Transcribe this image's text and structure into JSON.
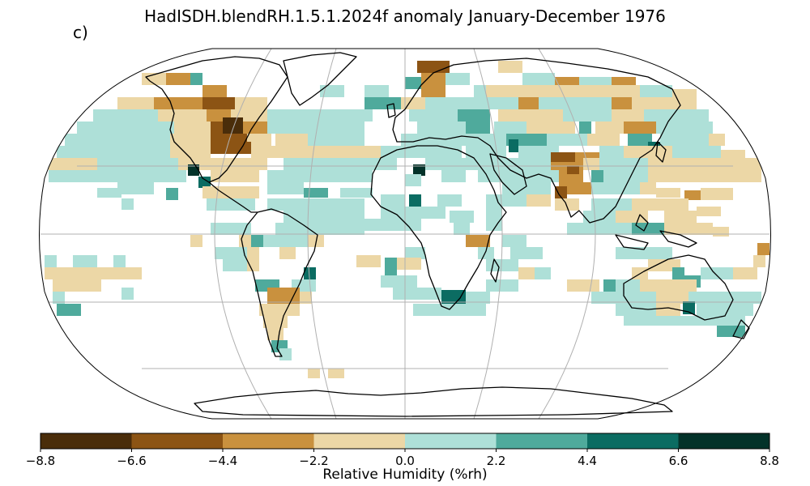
{
  "title": "HadISDH.blendRH.1.5.1.2024f anomaly January-December 1976",
  "panel_label": "c)",
  "colorbar": {
    "label": "Relative Humidity (%rh)",
    "ticks": [
      "−8.8",
      "−6.6",
      "−4.4",
      "−2.2",
      "0.0",
      "2.2",
      "4.4",
      "6.6",
      "8.8"
    ],
    "tick_values": [
      -8.8,
      -6.6,
      -4.4,
      -2.2,
      0.0,
      2.2,
      4.4,
      6.6,
      8.8
    ],
    "colors": [
      "#4a2d0a",
      "#8c5414",
      "#c9913e",
      "#ecd7a6",
      "#aee0d8",
      "#4faa9c",
      "#0b6c62",
      "#033229"
    ]
  },
  "map": {
    "projection": "Robinson",
    "graticule": true,
    "coastlines": true
  }
}
